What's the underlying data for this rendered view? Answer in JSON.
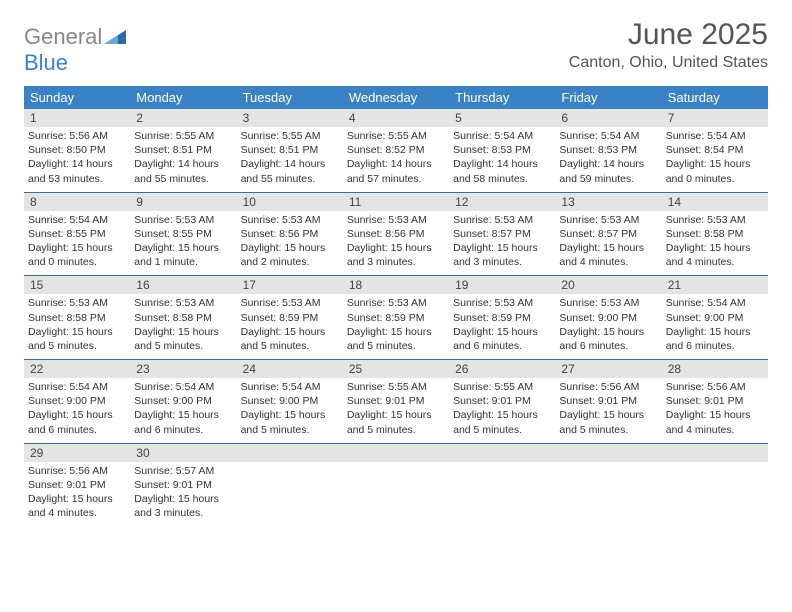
{
  "colors": {
    "header_bg": "#3b82c4",
    "daynum_bg": "#e4e4e4",
    "row_border": "#3b6ea0",
    "logo_gray": "#888888",
    "logo_blue": "#3b82c4",
    "text": "#333333",
    "title_text": "#555555"
  },
  "fonts": {
    "title_size": 30,
    "location_size": 16,
    "dow_size": 13,
    "daynum_size": 12,
    "body_size": 10.5
  },
  "logo": {
    "gray": "General",
    "blue": "Blue"
  },
  "title": "June 2025",
  "location": "Canton, Ohio, United States",
  "days_of_week": [
    "Sunday",
    "Monday",
    "Tuesday",
    "Wednesday",
    "Thursday",
    "Friday",
    "Saturday"
  ],
  "weeks": [
    [
      {
        "n": "1",
        "sr": "Sunrise: 5:56 AM",
        "ss": "Sunset: 8:50 PM",
        "d1": "Daylight: 14 hours",
        "d2": "and 53 minutes."
      },
      {
        "n": "2",
        "sr": "Sunrise: 5:55 AM",
        "ss": "Sunset: 8:51 PM",
        "d1": "Daylight: 14 hours",
        "d2": "and 55 minutes."
      },
      {
        "n": "3",
        "sr": "Sunrise: 5:55 AM",
        "ss": "Sunset: 8:51 PM",
        "d1": "Daylight: 14 hours",
        "d2": "and 55 minutes."
      },
      {
        "n": "4",
        "sr": "Sunrise: 5:55 AM",
        "ss": "Sunset: 8:52 PM",
        "d1": "Daylight: 14 hours",
        "d2": "and 57 minutes."
      },
      {
        "n": "5",
        "sr": "Sunrise: 5:54 AM",
        "ss": "Sunset: 8:53 PM",
        "d1": "Daylight: 14 hours",
        "d2": "and 58 minutes."
      },
      {
        "n": "6",
        "sr": "Sunrise: 5:54 AM",
        "ss": "Sunset: 8:53 PM",
        "d1": "Daylight: 14 hours",
        "d2": "and 59 minutes."
      },
      {
        "n": "7",
        "sr": "Sunrise: 5:54 AM",
        "ss": "Sunset: 8:54 PM",
        "d1": "Daylight: 15 hours",
        "d2": "and 0 minutes."
      }
    ],
    [
      {
        "n": "8",
        "sr": "Sunrise: 5:54 AM",
        "ss": "Sunset: 8:55 PM",
        "d1": "Daylight: 15 hours",
        "d2": "and 0 minutes."
      },
      {
        "n": "9",
        "sr": "Sunrise: 5:53 AM",
        "ss": "Sunset: 8:55 PM",
        "d1": "Daylight: 15 hours",
        "d2": "and 1 minute."
      },
      {
        "n": "10",
        "sr": "Sunrise: 5:53 AM",
        "ss": "Sunset: 8:56 PM",
        "d1": "Daylight: 15 hours",
        "d2": "and 2 minutes."
      },
      {
        "n": "11",
        "sr": "Sunrise: 5:53 AM",
        "ss": "Sunset: 8:56 PM",
        "d1": "Daylight: 15 hours",
        "d2": "and 3 minutes."
      },
      {
        "n": "12",
        "sr": "Sunrise: 5:53 AM",
        "ss": "Sunset: 8:57 PM",
        "d1": "Daylight: 15 hours",
        "d2": "and 3 minutes."
      },
      {
        "n": "13",
        "sr": "Sunrise: 5:53 AM",
        "ss": "Sunset: 8:57 PM",
        "d1": "Daylight: 15 hours",
        "d2": "and 4 minutes."
      },
      {
        "n": "14",
        "sr": "Sunrise: 5:53 AM",
        "ss": "Sunset: 8:58 PM",
        "d1": "Daylight: 15 hours",
        "d2": "and 4 minutes."
      }
    ],
    [
      {
        "n": "15",
        "sr": "Sunrise: 5:53 AM",
        "ss": "Sunset: 8:58 PM",
        "d1": "Daylight: 15 hours",
        "d2": "and 5 minutes."
      },
      {
        "n": "16",
        "sr": "Sunrise: 5:53 AM",
        "ss": "Sunset: 8:58 PM",
        "d1": "Daylight: 15 hours",
        "d2": "and 5 minutes."
      },
      {
        "n": "17",
        "sr": "Sunrise: 5:53 AM",
        "ss": "Sunset: 8:59 PM",
        "d1": "Daylight: 15 hours",
        "d2": "and 5 minutes."
      },
      {
        "n": "18",
        "sr": "Sunrise: 5:53 AM",
        "ss": "Sunset: 8:59 PM",
        "d1": "Daylight: 15 hours",
        "d2": "and 5 minutes."
      },
      {
        "n": "19",
        "sr": "Sunrise: 5:53 AM",
        "ss": "Sunset: 8:59 PM",
        "d1": "Daylight: 15 hours",
        "d2": "and 6 minutes."
      },
      {
        "n": "20",
        "sr": "Sunrise: 5:53 AM",
        "ss": "Sunset: 9:00 PM",
        "d1": "Daylight: 15 hours",
        "d2": "and 6 minutes."
      },
      {
        "n": "21",
        "sr": "Sunrise: 5:54 AM",
        "ss": "Sunset: 9:00 PM",
        "d1": "Daylight: 15 hours",
        "d2": "and 6 minutes."
      }
    ],
    [
      {
        "n": "22",
        "sr": "Sunrise: 5:54 AM",
        "ss": "Sunset: 9:00 PM",
        "d1": "Daylight: 15 hours",
        "d2": "and 6 minutes."
      },
      {
        "n": "23",
        "sr": "Sunrise: 5:54 AM",
        "ss": "Sunset: 9:00 PM",
        "d1": "Daylight: 15 hours",
        "d2": "and 6 minutes."
      },
      {
        "n": "24",
        "sr": "Sunrise: 5:54 AM",
        "ss": "Sunset: 9:00 PM",
        "d1": "Daylight: 15 hours",
        "d2": "and 5 minutes."
      },
      {
        "n": "25",
        "sr": "Sunrise: 5:55 AM",
        "ss": "Sunset: 9:01 PM",
        "d1": "Daylight: 15 hours",
        "d2": "and 5 minutes."
      },
      {
        "n": "26",
        "sr": "Sunrise: 5:55 AM",
        "ss": "Sunset: 9:01 PM",
        "d1": "Daylight: 15 hours",
        "d2": "and 5 minutes."
      },
      {
        "n": "27",
        "sr": "Sunrise: 5:56 AM",
        "ss": "Sunset: 9:01 PM",
        "d1": "Daylight: 15 hours",
        "d2": "and 5 minutes."
      },
      {
        "n": "28",
        "sr": "Sunrise: 5:56 AM",
        "ss": "Sunset: 9:01 PM",
        "d1": "Daylight: 15 hours",
        "d2": "and 4 minutes."
      }
    ],
    [
      {
        "n": "29",
        "sr": "Sunrise: 5:56 AM",
        "ss": "Sunset: 9:01 PM",
        "d1": "Daylight: 15 hours",
        "d2": "and 4 minutes."
      },
      {
        "n": "30",
        "sr": "Sunrise: 5:57 AM",
        "ss": "Sunset: 9:01 PM",
        "d1": "Daylight: 15 hours",
        "d2": "and 3 minutes."
      },
      null,
      null,
      null,
      null,
      null
    ]
  ]
}
